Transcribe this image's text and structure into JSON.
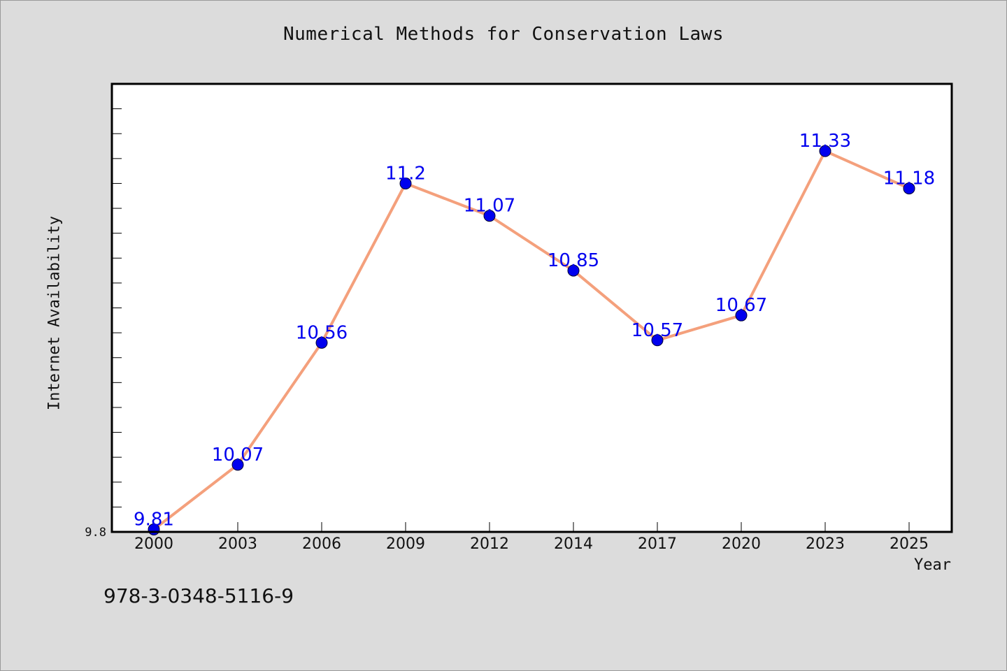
{
  "chart_data": {
    "type": "line",
    "title": "Numerical Methods for Conservation Laws",
    "xlabel": "Year",
    "ylabel": "Internet Availability",
    "categories": [
      "2000",
      "2003",
      "2006",
      "2009",
      "2012",
      "2014",
      "2017",
      "2020",
      "2023",
      "2025"
    ],
    "series": [
      {
        "values": [
          9.81,
          10.07,
          10.56,
          11.2,
          11.07,
          10.85,
          10.57,
          10.67,
          11.33,
          11.18
        ],
        "labels": [
          "9.81",
          "10.07",
          "10.56",
          "11.2",
          "11.07",
          "10.85",
          "10.57",
          "10.67",
          "11.33",
          "11.18"
        ],
        "line_color": "#f4a07c",
        "marker_color": "#0000ee",
        "label_color": "#0000ee"
      }
    ],
    "y_tick_labels": [
      "9.8"
    ],
    "ylim": [
      9.8,
      11.6
    ],
    "y_minor_tick_step": 0.1,
    "grid": false,
    "legend": "none"
  },
  "footer": {
    "id_text": "978-3-0348-5116-9"
  },
  "colors": {
    "background": "#dcdcdc",
    "plot_background": "#ffffff",
    "axis": "#000000"
  }
}
